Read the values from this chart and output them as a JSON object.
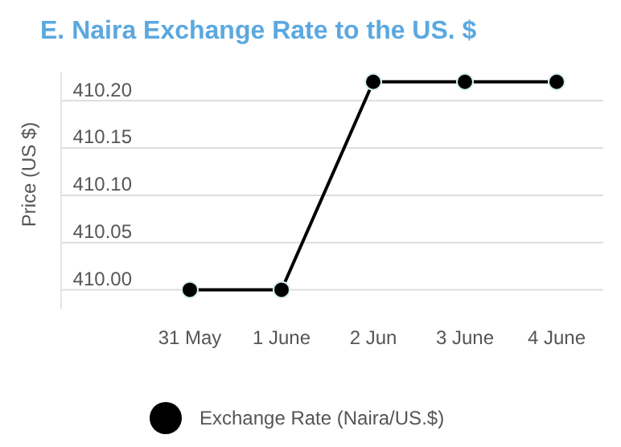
{
  "chart_data": {
    "type": "line",
    "title": "E. Naira Exchange Rate to the US. $",
    "ylabel": "Price (US $)",
    "categories": [
      "31 May",
      "1 June",
      "2 Jun",
      "3 June",
      "4 June"
    ],
    "series": [
      {
        "name": "Exchange Rate (Naira/US.$)",
        "color": "#000000",
        "values": [
          410.0,
          410.0,
          410.22,
          410.22,
          410.22
        ]
      }
    ],
    "ylim": [
      409.98,
      410.23
    ],
    "yticks": [
      {
        "value": 410,
        "label": "410.00"
      },
      {
        "value": 410.05,
        "label": "410.05"
      },
      {
        "value": 410.1,
        "label": "410.10"
      },
      {
        "value": 410.15,
        "label": "410.15"
      },
      {
        "value": 410.2,
        "label": "410.20"
      }
    ],
    "grid": "y",
    "legend": "bottom",
    "marker": "circle",
    "line_style": "solid"
  }
}
